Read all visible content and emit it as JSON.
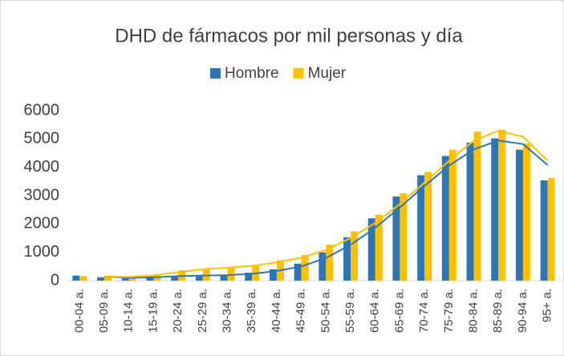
{
  "chart_data": {
    "type": "bar",
    "title": "DHD de fármacos por mil personas y día",
    "categories": [
      "00-04 a.",
      "05-09 a.",
      "10-14 a.",
      "15-19 a.",
      "20-24 a.",
      "25-29 a.",
      "30-34 a.",
      "35-39 a.",
      "40-44 a.",
      "45-49 a.",
      "50-54 a.",
      "55-59 a.",
      "60-64 a.",
      "65-69 a.",
      "70-74 a.",
      "75-79 a.",
      "80-84 a.",
      "85-89 a.",
      "90-94 a.",
      "95+ a."
    ],
    "series": [
      {
        "name": "Hombre",
        "color": "#2e75b6",
        "values": [
          180,
          120,
          80,
          150,
          170,
          190,
          200,
          280,
          400,
          600,
          1000,
          1530,
          2200,
          2970,
          3720,
          4400,
          4870,
          5020,
          4620,
          3540
        ]
      },
      {
        "name": "Mujer",
        "color": "#ffc000",
        "values": [
          160,
          140,
          130,
          230,
          370,
          430,
          480,
          560,
          720,
          900,
          1270,
          1740,
          2330,
          3080,
          3840,
          4620,
          5260,
          5320,
          4840,
          3620
        ]
      }
    ],
    "trendline": {
      "type": "moving_average",
      "period": 2
    },
    "ylim": [
      0,
      6000
    ],
    "yticks": [
      0,
      1000,
      2000,
      3000,
      4000,
      5000,
      6000
    ],
    "grid": false,
    "legend": "top"
  }
}
